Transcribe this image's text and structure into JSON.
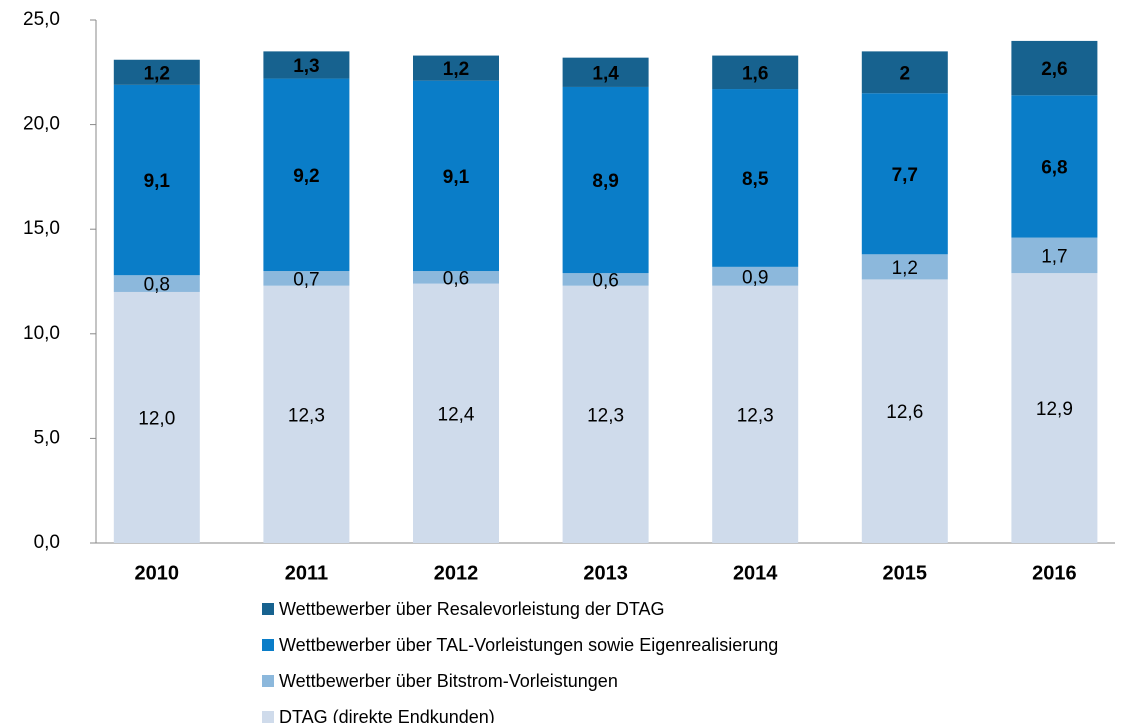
{
  "chart_data": {
    "type": "stacked_bar",
    "categories": [
      "2010",
      "2011",
      "2012",
      "2013",
      "2014",
      "2015",
      "2016"
    ],
    "series": [
      {
        "name": "DTAG (direkte Endkunden)",
        "color": "#cfdbeb",
        "label_color": "#000000",
        "label_bold": false,
        "values": [
          12.0,
          12.3,
          12.4,
          12.3,
          12.3,
          12.6,
          12.9
        ],
        "value_labels": [
          "12,0",
          "12,3",
          "12,4",
          "12,3",
          "12,3",
          "12,6",
          "12,9"
        ]
      },
      {
        "name": "Wettbewerber über Bitstrom-Vorleistungen",
        "color": "#8cb8dc",
        "label_color": "#000000",
        "label_bold": false,
        "values": [
          0.8,
          0.7,
          0.6,
          0.6,
          0.9,
          1.2,
          1.7
        ],
        "value_labels": [
          "0,8",
          "0,7",
          "0,6",
          "0,6",
          "0,9",
          "1,2",
          "1,7"
        ]
      },
      {
        "name": "Wettbewerber über TAL-Vorleistungen  sowie Eigenrealisierung",
        "color": "#0a7dc8",
        "label_color": "#ffffff",
        "label_bold": true,
        "values": [
          9.1,
          9.2,
          9.1,
          8.9,
          8.5,
          7.7,
          6.8
        ],
        "value_labels": [
          "9,1",
          "9,2",
          "9,1",
          "8,9",
          "8,5",
          "7,7",
          "6,8"
        ]
      },
      {
        "name": "Wettbewerber über Resalevorleistung der DTAG",
        "color": "#17628f",
        "label_color": "#ffffff",
        "label_bold": true,
        "values": [
          1.2,
          1.3,
          1.2,
          1.4,
          1.6,
          2,
          2.6
        ],
        "value_labels": [
          "1,2",
          "1,3",
          "1,2",
          "1,4",
          "1,6",
          "2",
          "2,6"
        ]
      }
    ],
    "ylim": [
      0,
      25
    ],
    "yticks": [
      {
        "value": 0,
        "label": "0,0"
      },
      {
        "value": 5,
        "label": "5,0"
      },
      {
        "value": 10,
        "label": "10,0"
      },
      {
        "value": 15,
        "label": "15,0"
      },
      {
        "value": 20,
        "label": "20,0"
      },
      {
        "value": 25,
        "label": "25,0"
      }
    ],
    "grid": false
  }
}
